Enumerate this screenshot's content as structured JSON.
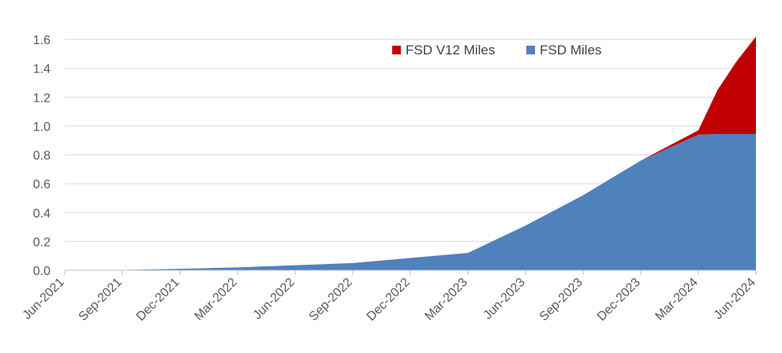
{
  "chart_data": {
    "type": "area",
    "stacked": true,
    "title": "",
    "xlabel": "",
    "ylabel": "",
    "ylim": [
      0,
      1.6
    ],
    "y_ticks": [
      "0.0",
      "0.2",
      "0.4",
      "0.6",
      "0.8",
      "1.0",
      "1.2",
      "1.4",
      "1.6"
    ],
    "categories": [
      "Jun-2021",
      "Sep-2021",
      "Dec-2021",
      "Mar-2022",
      "Jun-2022",
      "Sep-2022",
      "Dec-2022",
      "Mar-2023",
      "Jun-2023",
      "Sep-2023",
      "Dec-2023",
      "Mar-2024",
      "Jun-2024"
    ],
    "x": [
      0,
      3,
      6,
      9,
      12,
      15,
      18,
      21,
      24,
      27,
      30,
      33,
      34,
      35,
      36
    ],
    "legend_position": "top-right",
    "series": [
      {
        "name": "FSD Miles",
        "color": "#4F81BD",
        "values": [
          0.0,
          0.002,
          0.01,
          0.02,
          0.035,
          0.05,
          0.085,
          0.12,
          0.31,
          0.52,
          0.76,
          0.94,
          0.945,
          0.945,
          0.945
        ]
      },
      {
        "name": "FSD V12 Miles",
        "color": "#C00000",
        "values": [
          0,
          0,
          0,
          0,
          0,
          0,
          0,
          0,
          0,
          0,
          0,
          0.03,
          0.305,
          0.505,
          0.675
        ]
      }
    ],
    "gridlines": true
  }
}
